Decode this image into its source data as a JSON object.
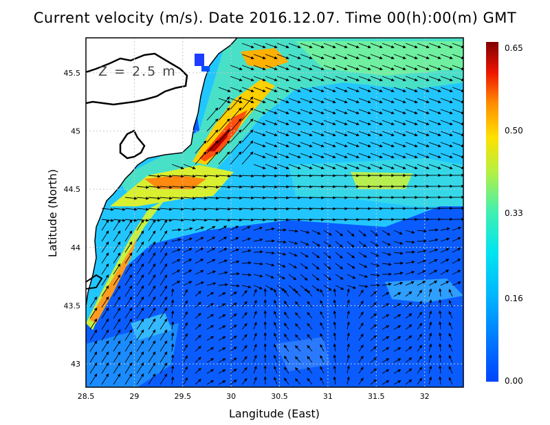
{
  "title": "Current velocity (m/s). Date 2016.12.07. Time 00(h):00(m) GMT",
  "depth_label": "Z  =  2.5  m",
  "x_axis": {
    "title": "Langitude (East)",
    "ticks": [
      "28.5",
      "29",
      "29.5",
      "30",
      "30.5",
      "31",
      "31.5",
      "32"
    ],
    "range": [
      28.5,
      32.4
    ]
  },
  "y_axis": {
    "title": "Latitude (North)",
    "ticks": [
      "43",
      "43.5",
      "44",
      "44.5",
      "45",
      "45.5"
    ],
    "range": [
      42.8,
      45.8
    ]
  },
  "colorbar": {
    "labels": [
      "0.65",
      "0.50",
      "0.33",
      "0.16",
      "0.00"
    ],
    "min": 0.0,
    "max": 0.65
  },
  "colors": {
    "coast": "#000000",
    "land": "#ffffff",
    "grid": "#c8c8c8"
  },
  "chart_data": {
    "type": "heatmap",
    "title": "Current velocity (m/s). Date 2016.12.07. Time 00(h):00(m) GMT",
    "xlabel": "Langitude (East)",
    "ylabel": "Latitude (North)",
    "xlim": [
      28.5,
      32.4
    ],
    "ylim": [
      42.8,
      45.8
    ],
    "colorbar_range": [
      0.0,
      0.65
    ],
    "overlay": "velocity vectors"
  }
}
